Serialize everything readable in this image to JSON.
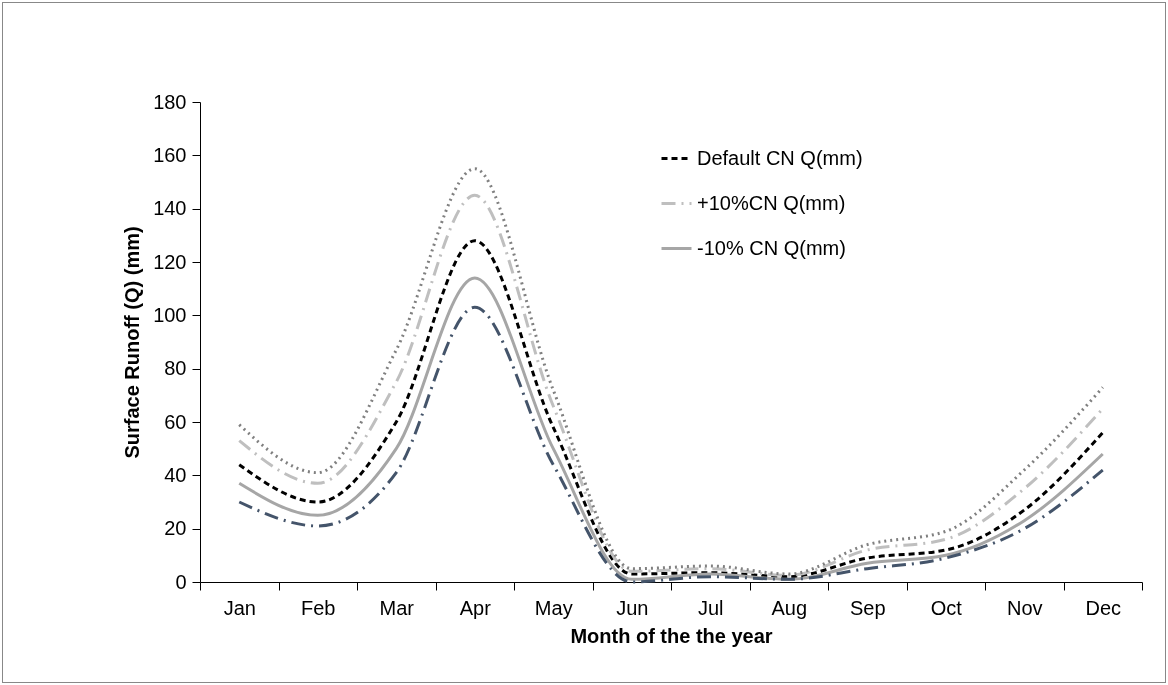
{
  "chart_data": {
    "type": "line",
    "xlabel": "Month of the the year",
    "ylabel": "Surface Runoff (Q) (mm)",
    "categories": [
      "Jan",
      "Feb",
      "Mar",
      "Apr",
      "May",
      "Jun",
      "Jul",
      "Aug",
      "Sep",
      "Oct",
      "Nov",
      "Dec"
    ],
    "series": [
      {
        "name": "Default CN Q(mm)",
        "color": "#000000",
        "line_style": "dashed",
        "values": [
          44,
          30,
          60,
          128,
          58,
          3,
          3.5,
          2,
          9,
          12,
          27,
          56
        ]
      },
      {
        "name": "+10%CN Q(mm)",
        "color": "#bfbfbf",
        "line_style": "dashdot",
        "values": [
          53,
          37,
          75,
          145,
          66,
          4,
          5,
          2.5,
          12,
          16,
          35,
          65
        ]
      },
      {
        "name": "-10% CN Q(mm)",
        "color": "#a6a6a6",
        "line_style": "solid",
        "values": [
          37,
          25,
          50,
          114,
          50,
          1,
          3,
          1,
          7,
          10,
          23,
          48
        ]
      },
      {
        "color": "#808080",
        "line_style": "dotted",
        "values": [
          59,
          41,
          87,
          155,
          72,
          5,
          6,
          3,
          14,
          19,
          42,
          73
        ]
      },
      {
        "color": "#44546a",
        "line_style": "dashdot",
        "values": [
          30,
          21,
          41,
          103,
          44,
          0,
          2,
          1,
          5,
          9,
          20,
          42
        ]
      }
    ],
    "ylim": [
      0,
      180
    ],
    "yticks": [
      0,
      20,
      40,
      60,
      80,
      100,
      120,
      140,
      160,
      180
    ],
    "grid": false,
    "legend": "top right"
  }
}
